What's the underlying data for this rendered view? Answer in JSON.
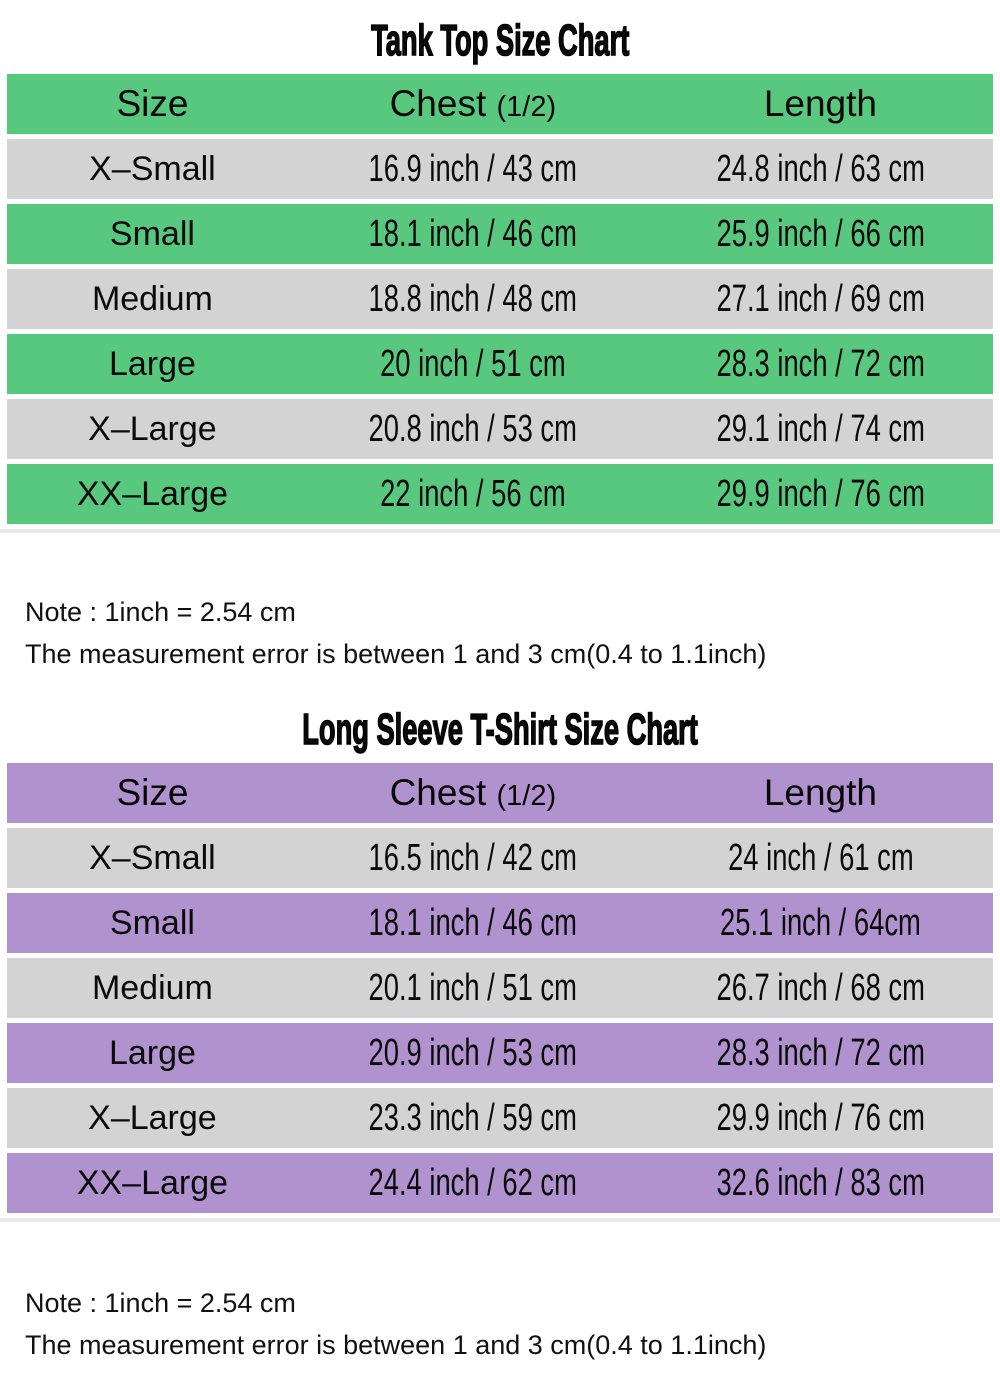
{
  "tables": [
    {
      "title": "Tank Top Size Chart",
      "accent_color": "#57c87d",
      "alt_row_color": "#d3d3d3",
      "headers": {
        "size": "Size",
        "chest": "Chest",
        "chest_sub": "(1/2)",
        "length": "Length"
      },
      "rows": [
        {
          "size": "X–Small",
          "chest": "16.9 inch / 43 cm",
          "length": "24.8 inch / 63 cm"
        },
        {
          "size": "Small",
          "chest": "18.1 inch / 46 cm",
          "length": "25.9 inch / 66 cm"
        },
        {
          "size": "Medium",
          "chest": "18.8 inch / 48 cm",
          "length": "27.1 inch / 69 cm"
        },
        {
          "size": "Large",
          "chest": "20 inch / 51 cm",
          "length": "28.3 inch / 72 cm"
        },
        {
          "size": "X–Large",
          "chest": "20.8 inch / 53 cm",
          "length": "29.1 inch / 74 cm"
        },
        {
          "size": "XX–Large",
          "chest": "22 inch / 56 cm",
          "length": "29.9 inch / 76 cm"
        }
      ],
      "notes": [
        "Note : 1inch = 2.54 cm",
        "The measurement error is between 1 and 3 cm(0.4 to 1.1inch)"
      ]
    },
    {
      "title": "Long Sleeve T-Shirt Size Chart",
      "accent_color": "#b092cf",
      "alt_row_color": "#d3d3d3",
      "headers": {
        "size": "Size",
        "chest": "Chest",
        "chest_sub": "(1/2)",
        "length": "Length"
      },
      "rows": [
        {
          "size": "X–Small",
          "chest": "16.5 inch / 42 cm",
          "length": "24 inch / 61 cm"
        },
        {
          "size": "Small",
          "chest": "18.1 inch / 46 cm",
          "length": "25.1 inch / 64cm"
        },
        {
          "size": "Medium",
          "chest": "20.1 inch / 51 cm",
          "length": "26.7 inch / 68 cm"
        },
        {
          "size": "Large",
          "chest": "20.9 inch / 53 cm",
          "length": "28.3 inch / 72 cm"
        },
        {
          "size": "X–Large",
          "chest": "23.3 inch / 59 cm",
          "length": "29.9 inch / 76 cm"
        },
        {
          "size": "XX–Large",
          "chest": "24.4 inch / 62 cm",
          "length": "32.6 inch / 83 cm"
        }
      ],
      "notes": [
        "Note : 1inch = 2.54 cm",
        "The measurement error is between 1 and 3 cm(0.4 to 1.1inch)"
      ]
    }
  ],
  "chart_data": [
    {
      "type": "table",
      "title": "Tank Top Size Chart",
      "columns": [
        "Size",
        "Chest (1/2)",
        "Length"
      ],
      "rows": [
        [
          "X–Small",
          "16.9 inch / 43 cm",
          "24.8 inch / 63 cm"
        ],
        [
          "Small",
          "18.1 inch / 46 cm",
          "25.9 inch / 66 cm"
        ],
        [
          "Medium",
          "18.8 inch / 48 cm",
          "27.1 inch / 69 cm"
        ],
        [
          "Large",
          "20 inch / 51 cm",
          "28.3 inch / 72 cm"
        ],
        [
          "X–Large",
          "20.8 inch / 53 cm",
          "29.1 inch / 74 cm"
        ],
        [
          "XX–Large",
          "22 inch / 56 cm",
          "29.9 inch / 76 cm"
        ]
      ],
      "notes": [
        "Note : 1inch = 2.54 cm",
        "The measurement error is between 1 and 3 cm(0.4 to 1.1inch)"
      ],
      "accent_color": "#57c87d"
    },
    {
      "type": "table",
      "title": "Long Sleeve T-Shirt Size Chart",
      "columns": [
        "Size",
        "Chest (1/2)",
        "Length"
      ],
      "rows": [
        [
          "X–Small",
          "16.5 inch / 42 cm",
          "24 inch / 61 cm"
        ],
        [
          "Small",
          "18.1 inch / 46 cm",
          "25.1 inch / 64cm"
        ],
        [
          "Medium",
          "20.1 inch / 51 cm",
          "26.7 inch / 68 cm"
        ],
        [
          "Large",
          "20.9 inch / 53 cm",
          "28.3 inch / 72 cm"
        ],
        [
          "X–Large",
          "23.3 inch / 59 cm",
          "29.9 inch / 76 cm"
        ],
        [
          "XX–Large",
          "24.4 inch / 62 cm",
          "32.6 inch / 83 cm"
        ]
      ],
      "notes": [
        "Note : 1inch = 2.54 cm",
        "The measurement error is between 1 and 3 cm(0.4 to 1.1inch)"
      ],
      "accent_color": "#b092cf"
    }
  ]
}
